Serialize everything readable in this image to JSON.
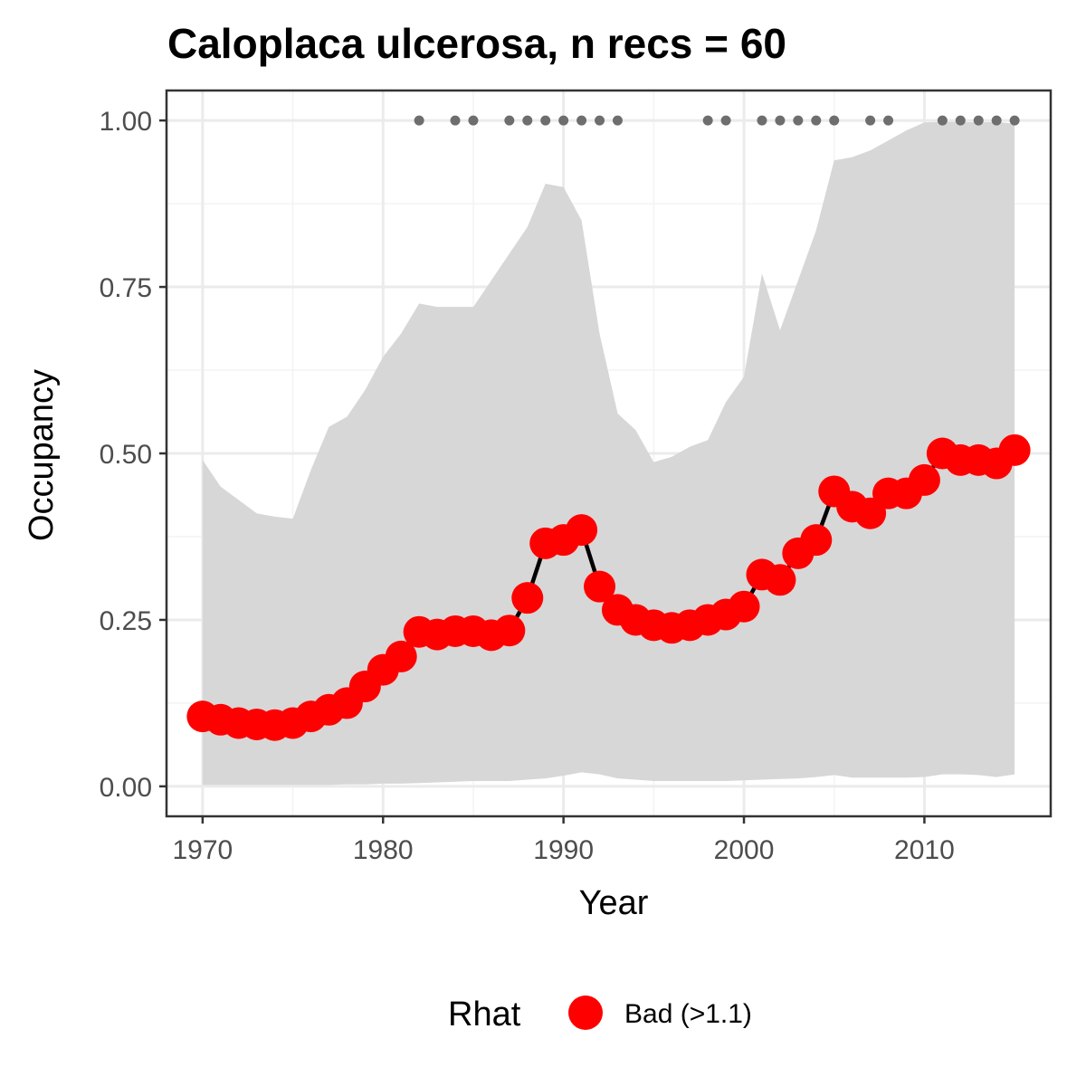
{
  "chart_data": {
    "type": "line",
    "title": "Caloplaca ulcerosa, n recs = 60",
    "xlabel": "Year",
    "ylabel": "Occupancy",
    "xlim": [
      1968,
      2017
    ],
    "ylim": [
      -0.045,
      1.045
    ],
    "x_ticks": [
      1970,
      1980,
      1990,
      2000,
      2010
    ],
    "x_tick_labels": [
      "1970",
      "1980",
      "1990",
      "2000",
      "2010"
    ],
    "y_ticks": [
      0,
      0.25,
      0.5,
      0.75,
      1.0
    ],
    "y_tick_labels": [
      "0.00",
      "0.25",
      "0.50",
      "0.75",
      "1.00"
    ],
    "grid": true,
    "legend": {
      "title": "Rhat",
      "placement": "bottom",
      "entries": [
        {
          "label": "Bad (>1.1)",
          "color": "#ff0000"
        }
      ]
    },
    "colors": {
      "points": "#ff0000",
      "line": "#000000",
      "ribbon": "#d6d6d6",
      "record_dots": "#6e6e6e",
      "panel_border": "#333333",
      "grid": "#ebebeb"
    },
    "series": [
      {
        "kind": "mean",
        "x": [
          1970,
          1971,
          1972,
          1973,
          1974,
          1975,
          1976,
          1977,
          1978,
          1979,
          1980,
          1981,
          1982,
          1983,
          1984,
          1985,
          1986,
          1987,
          1988,
          1989,
          1990,
          1991,
          1992,
          1993,
          1994,
          1995,
          1996,
          1997,
          1998,
          1999,
          2000,
          2001,
          2002,
          2003,
          2004,
          2005,
          2006,
          2007,
          2008,
          2009,
          2010,
          2011,
          2012,
          2013,
          2014,
          2015
        ],
        "values": [
          0.105,
          0.1,
          0.095,
          0.093,
          0.092,
          0.095,
          0.105,
          0.115,
          0.125,
          0.15,
          0.175,
          0.195,
          0.232,
          0.228,
          0.233,
          0.233,
          0.227,
          0.234,
          0.283,
          0.365,
          0.37,
          0.385,
          0.3,
          0.265,
          0.25,
          0.242,
          0.238,
          0.242,
          0.25,
          0.258,
          0.27,
          0.318,
          0.31,
          0.35,
          0.37,
          0.443,
          0.42,
          0.41,
          0.44,
          0.44,
          0.46,
          0.5,
          0.49,
          0.49,
          0.485,
          0.505
        ]
      },
      {
        "kind": "credible-interval-upper",
        "x": [
          1970,
          1971,
          1972,
          1973,
          1974,
          1975,
          1976,
          1977,
          1978,
          1979,
          1980,
          1981,
          1982,
          1983,
          1984,
          1985,
          1986,
          1987,
          1988,
          1989,
          1990,
          1991,
          1992,
          1993,
          1994,
          1995,
          1996,
          1997,
          1998,
          1999,
          2000,
          2001,
          2002,
          2003,
          2004,
          2005,
          2006,
          2007,
          2008,
          2009,
          2010,
          2011,
          2012,
          2013,
          2014,
          2015
        ],
        "values": [
          0.49,
          0.45,
          0.43,
          0.41,
          0.405,
          0.402,
          0.475,
          0.54,
          0.555,
          0.595,
          0.645,
          0.68,
          0.725,
          0.72,
          0.72,
          0.72,
          0.76,
          0.8,
          0.84,
          0.905,
          0.9,
          0.85,
          0.68,
          0.56,
          0.535,
          0.487,
          0.495,
          0.51,
          0.52,
          0.577,
          0.615,
          0.77,
          0.685,
          0.76,
          0.835,
          0.94,
          0.945,
          0.955,
          0.97,
          0.985,
          0.997,
          0.998,
          0.998,
          0.997,
          0.998,
          0.995
        ]
      },
      {
        "kind": "credible-interval-lower",
        "x": [
          1970,
          1971,
          1972,
          1973,
          1974,
          1975,
          1976,
          1977,
          1978,
          1979,
          1980,
          1981,
          1982,
          1983,
          1984,
          1985,
          1986,
          1987,
          1988,
          1989,
          1990,
          1991,
          1992,
          1993,
          1994,
          1995,
          1996,
          1997,
          1998,
          1999,
          2000,
          2001,
          2002,
          2003,
          2004,
          2005,
          2006,
          2007,
          2008,
          2009,
          2010,
          2011,
          2012,
          2013,
          2014,
          2015
        ],
        "values": [
          0.002,
          0.002,
          0.002,
          0.002,
          0.002,
          0.002,
          0.002,
          0.002,
          0.003,
          0.003,
          0.004,
          0.004,
          0.005,
          0.006,
          0.007,
          0.008,
          0.008,
          0.008,
          0.01,
          0.012,
          0.016,
          0.021,
          0.018,
          0.012,
          0.01,
          0.008,
          0.008,
          0.008,
          0.008,
          0.008,
          0.009,
          0.01,
          0.011,
          0.012,
          0.014,
          0.017,
          0.013,
          0.013,
          0.013,
          0.013,
          0.014,
          0.018,
          0.018,
          0.017,
          0.014,
          0.018
        ]
      }
    ],
    "record_years": [
      1982,
      1984,
      1985,
      1987,
      1988,
      1989,
      1990,
      1991,
      1992,
      1993,
      1998,
      1999,
      2001,
      2002,
      2003,
      2004,
      2005,
      2007,
      2008,
      2011,
      2012,
      2013,
      2014,
      2015
    ],
    "record_y": 1.0
  }
}
